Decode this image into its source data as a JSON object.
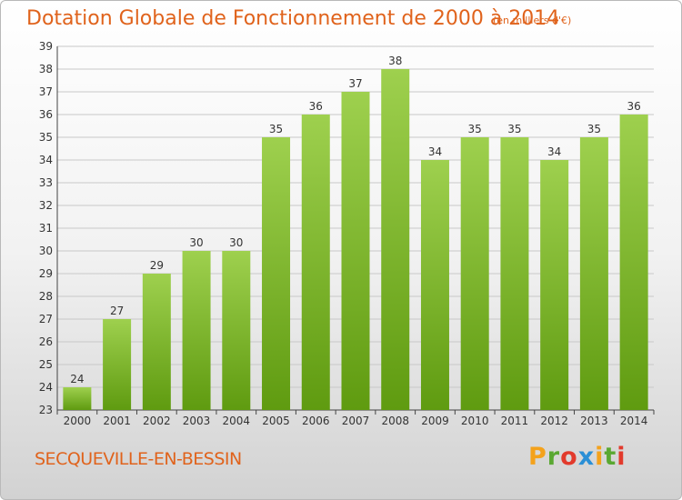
{
  "header": {
    "title": "Dotation Globale de Fonctionnement de 2000 à 2014",
    "unit": "(en milliers d'€)"
  },
  "footer": {
    "commune": "SECQUEVILLE-EN-BESSIN",
    "logo_letters": [
      "P",
      "r",
      "o",
      "x",
      "i",
      "t",
      "i"
    ],
    "logo_colors": [
      "#f4a21c",
      "#5aa832",
      "#e23a2c",
      "#2a8fd6",
      "#f4a21c",
      "#5aa832",
      "#e23a2c"
    ]
  },
  "colors": {
    "bar_light": "#9ed04e",
    "bar_dark": "#5f9b10",
    "title": "#e0631c",
    "grid": "#c8c8c8"
  },
  "chart_data": {
    "type": "bar",
    "categories": [
      "2000",
      "2001",
      "2002",
      "2003",
      "2004",
      "2005",
      "2006",
      "2007",
      "2008",
      "2009",
      "2010",
      "2011",
      "2012",
      "2013",
      "2014"
    ],
    "values": [
      24,
      27,
      29,
      30,
      30,
      35,
      36,
      37,
      38,
      34,
      35,
      35,
      34,
      35,
      36
    ],
    "title": "Dotation Globale de Fonctionnement de 2000 à 2014",
    "ylabel": "",
    "xlabel": "",
    "ylim": [
      23,
      39
    ],
    "yticks": [
      23,
      24,
      25,
      26,
      27,
      28,
      29,
      30,
      31,
      32,
      33,
      34,
      35,
      36,
      37,
      38,
      39
    ],
    "grid": true,
    "data_labels": true
  }
}
